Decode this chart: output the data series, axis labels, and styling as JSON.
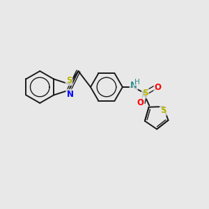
{
  "bg_color": "#e8e8e8",
  "bond_color": "#1a1a1a",
  "S_color": "#b8b800",
  "N_color": "#0000ff",
  "O_color": "#ff0000",
  "NH_color": "#2e8b8b",
  "figsize": [
    3.0,
    3.0
  ],
  "dpi": 100,
  "xlim": [
    0,
    10
  ],
  "ylim": [
    0,
    10
  ]
}
